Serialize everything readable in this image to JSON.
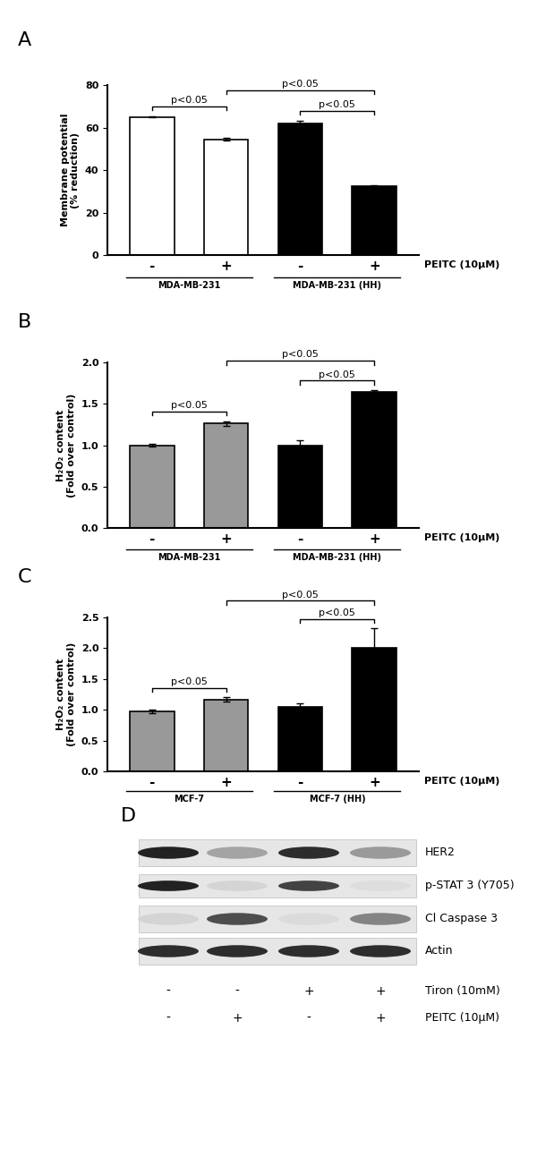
{
  "chart_data": [
    {
      "type": "bar",
      "panel": "A",
      "y_label": "Membrane potential\n(% reduction)",
      "x_label": "PEITC (10μM)",
      "categories": [
        "-",
        "+",
        "-",
        "+"
      ],
      "values": [
        65,
        54.5,
        62,
        32.5
      ],
      "errors": [
        0.3,
        0.8,
        1.2,
        0.3
      ],
      "colors": [
        "#ffffff",
        "#ffffff",
        "#000000",
        "#000000"
      ],
      "groups": [
        {
          "label": "MDA-MB-231",
          "from": 0,
          "to": 1
        },
        {
          "label": "MDA-MB-231 (HH)",
          "from": 2,
          "to": 3
        }
      ],
      "annotations": [
        {
          "text": "p<0.05",
          "from": 0,
          "to": 1
        },
        {
          "text": "p<0.05",
          "from": 2,
          "to": 3
        },
        {
          "text": "p<0.05",
          "from": 1,
          "to": 3
        }
      ],
      "ylim": [
        0,
        80
      ],
      "yticks": [
        0,
        20,
        40,
        60,
        80
      ]
    },
    {
      "type": "bar",
      "panel": "B",
      "y_label": "H₂O₂ content\n(Fold over control)",
      "x_label": "PEITC (10μM)",
      "categories": [
        "-",
        "+",
        "-",
        "+"
      ],
      "values": [
        1.0,
        1.26,
        1.0,
        1.64
      ],
      "errors": [
        0.02,
        0.03,
        0.06,
        0.02
      ],
      "colors": [
        "#999999",
        "#999999",
        "#000000",
        "#000000"
      ],
      "groups": [
        {
          "label": "MDA-MB-231",
          "from": 0,
          "to": 1
        },
        {
          "label": "MDA-MB-231 (HH)",
          "from": 2,
          "to": 3
        }
      ],
      "annotations": [
        {
          "text": "p<0.05",
          "from": 0,
          "to": 1
        },
        {
          "text": "p<0.05",
          "from": 2,
          "to": 3
        },
        {
          "text": "p<0.05",
          "from": 1,
          "to": 3
        }
      ],
      "ylim": [
        0,
        2.0
      ],
      "yticks": [
        {
          "value": 0,
          "label": "0.0"
        },
        {
          "value": 0.5,
          "label": "0.5"
        },
        {
          "value": 1.0,
          "label": "1.0"
        },
        {
          "value": 1.5,
          "label": "1.5"
        },
        {
          "value": 2.0,
          "label": "2.0"
        }
      ]
    },
    {
      "type": "bar",
      "panel": "C",
      "y_label": "H₂O₂ content\n(Fold over control)",
      "x_label": "PEITC (10μM)",
      "categories": [
        "-",
        "+",
        "-",
        "+"
      ],
      "values": [
        0.97,
        1.17,
        1.05,
        2.0
      ],
      "errors": [
        0.03,
        0.03,
        0.05,
        0.32
      ],
      "colors": [
        "#999999",
        "#999999",
        "#000000",
        "#000000"
      ],
      "groups": [
        {
          "label": "MCF-7",
          "from": 0,
          "to": 1
        },
        {
          "label": "MCF-7 (HH)",
          "from": 2,
          "to": 3
        }
      ],
      "annotations": [
        {
          "text": "p<0.05",
          "from": 0,
          "to": 1
        },
        {
          "text": "p<0.05",
          "from": 2,
          "to": 3
        },
        {
          "text": "p<0.05",
          "from": 1,
          "to": 3
        }
      ],
      "ylim": [
        0,
        2.5
      ],
      "yticks": [
        {
          "value": 0,
          "label": "0.0"
        },
        {
          "value": 0.5,
          "label": "0.5"
        },
        {
          "value": 1.0,
          "label": "1.0"
        },
        {
          "value": 1.5,
          "label": "1.5"
        },
        {
          "value": 2.0,
          "label": "2.0"
        },
        {
          "value": 2.5,
          "label": "2.5"
        }
      ]
    }
  ],
  "blot": {
    "panel": "D",
    "rows": [
      "HER2",
      "p-STAT 3 (Y705)",
      "Cl Caspase 3",
      "Actin"
    ],
    "treatments": [
      {
        "label": "Tiron (10mM)",
        "lanes": [
          "-",
          "-",
          "+",
          "+"
        ]
      },
      {
        "label": "PEITC (10μM)",
        "lanes": [
          "-",
          "+",
          "-",
          "+"
        ]
      }
    ]
  }
}
